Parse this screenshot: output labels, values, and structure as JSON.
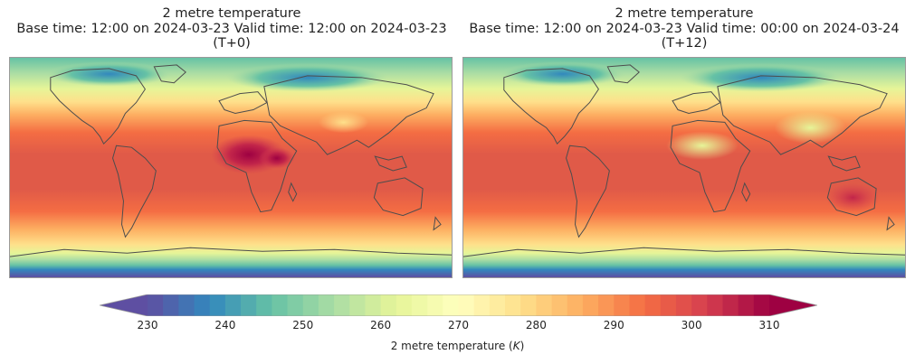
{
  "variable_name": "2 metre temperature",
  "panels": [
    {
      "title_line1": "2 metre temperature",
      "title_line2": "Base time: 12:00 on 2024-03-23   Valid time: 12:00 on 2024-03-23",
      "title_line3": "(T+0)",
      "hot_spots": "africa"
    },
    {
      "title_line1": "2 metre temperature",
      "title_line2": "Base time: 12:00 on 2024-03-23   Valid time: 00:00 on 2024-03-24",
      "title_line3": "(T+12)",
      "hot_spots": "australia"
    }
  ],
  "colorbar": {
    "ticks": [
      "230",
      "240",
      "250",
      "260",
      "270",
      "280",
      "290",
      "300",
      "310"
    ],
    "label_prefix": "2 metre temperature (",
    "label_unit": "K",
    "label_suffix": ")",
    "min": 230,
    "max": 310,
    "extend": "both",
    "colormap": [
      "#5e4fa2",
      "#3288bd",
      "#66c2a5",
      "#abdda4",
      "#e6f598",
      "#ffffbf",
      "#fee08b",
      "#fdae61",
      "#f46d43",
      "#d53e4f",
      "#9e0142"
    ]
  }
}
